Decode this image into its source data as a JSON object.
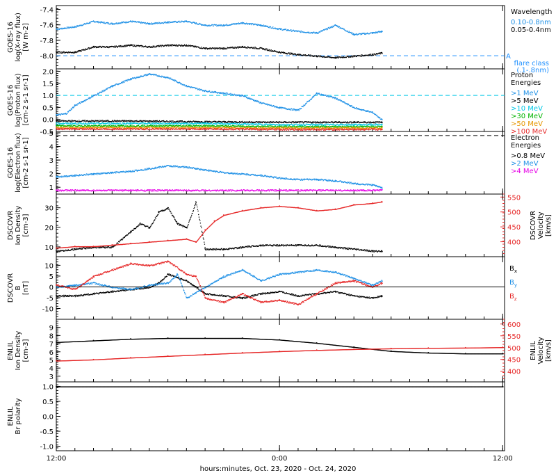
{
  "figure": {
    "xlabel": "hours:minutes, Oct. 23, 2020 - Oct. 24, 2020",
    "x_ticks": [
      "12:00",
      "0:00",
      "12:00"
    ],
    "x_tick_hours": [
      12,
      24,
      36
    ],
    "x_range_hours": [
      12,
      36.1
    ],
    "data_end_hours": [
      29.5
    ]
  },
  "colors": {
    "black": "#000000",
    "blue": "#1e90e6",
    "cyan": "#00c8e6",
    "lightblue": "#1e90ff",
    "green": "#00b400",
    "orange": "#e69600",
    "red": "#e62828",
    "magenta": "#e600e6"
  },
  "chart_data": [
    {
      "type": "scatter",
      "panel": "xray",
      "ylabel": [
        "GOES-16",
        "log(X-ray flux)",
        "[W m-2]"
      ],
      "ylim": [
        -8.17,
        -7.35
      ],
      "yticks": [
        "-7.4",
        "-7.6",
        "-7.8",
        "-8.0"
      ],
      "ytick_values": [
        -7.4,
        -7.6,
        -7.8,
        -8.0
      ],
      "legend_title": "Wavelength",
      "series": [
        {
          "name": "0.10-0.8nm",
          "color": "blue",
          "x": [
            12,
            13,
            14,
            15,
            16,
            17,
            18,
            19,
            20,
            21,
            22,
            23,
            24,
            25,
            26,
            27,
            28,
            29,
            29.5
          ],
          "y": [
            -7.65,
            -7.62,
            -7.55,
            -7.58,
            -7.55,
            -7.58,
            -7.56,
            -7.55,
            -7.6,
            -7.6,
            -7.57,
            -7.6,
            -7.65,
            -7.68,
            -7.7,
            -7.6,
            -7.72,
            -7.7,
            -7.68
          ]
        },
        {
          "name": "0.05-0.4nm",
          "color": "black",
          "x": [
            12,
            13,
            14,
            15,
            16,
            17,
            18,
            19,
            20,
            21,
            22,
            23,
            24,
            25,
            26,
            27,
            28,
            29,
            29.5
          ],
          "y": [
            -7.95,
            -7.95,
            -7.88,
            -7.88,
            -7.86,
            -7.88,
            -7.86,
            -7.86,
            -7.9,
            -7.9,
            -7.88,
            -7.9,
            -7.95,
            -7.98,
            -8.0,
            -8.02,
            -8.0,
            -7.98,
            -7.96
          ]
        }
      ],
      "reference_line": {
        "value": -8.0,
        "label": "A",
        "note": [
          "flare class",
          "(.1-.8nm)"
        ],
        "color": "lightblue"
      }
    },
    {
      "type": "scatter",
      "panel": "proton",
      "ylabel": [
        "GOES-16",
        "log(Proton flux)",
        "[cm-2 s-1 sr-1]"
      ],
      "ylim": [
        -0.5,
        2.1
      ],
      "yticks": [
        "2.0",
        "1.5",
        "1.0",
        "0.5",
        "0.0",
        "-0.5"
      ],
      "ytick_values": [
        2.0,
        1.5,
        1.0,
        0.5,
        0.0,
        -0.5
      ],
      "legend_title": [
        "Proton",
        "Energies"
      ],
      "series": [
        {
          "name": ">1 MeV",
          "color": "blue",
          "x": [
            12,
            12.5,
            13,
            14,
            15,
            16,
            17,
            18,
            19,
            20,
            21,
            22,
            23,
            24,
            25,
            26,
            27,
            28,
            29,
            29.5
          ],
          "y": [
            0.2,
            0.25,
            0.6,
            1.0,
            1.4,
            1.7,
            1.9,
            1.75,
            1.4,
            1.2,
            1.1,
            1.0,
            0.7,
            0.5,
            0.4,
            1.1,
            0.9,
            0.5,
            0.3,
            0.0
          ]
        },
        {
          "name": ">5 MeV",
          "color": "black",
          "x": [
            12,
            16,
            20,
            24,
            28,
            29.5
          ],
          "y": [
            -0.05,
            -0.05,
            -0.08,
            -0.1,
            -0.1,
            -0.1
          ]
        },
        {
          "name": ">10 MeV",
          "color": "cyan",
          "x": [
            12,
            16,
            20,
            24,
            28,
            29.5
          ],
          "y": [
            -0.15,
            -0.15,
            -0.15,
            -0.2,
            -0.2,
            -0.2
          ]
        },
        {
          "name": ">30 MeV",
          "color": "green",
          "x": [
            12,
            16,
            20,
            24,
            28,
            29.5
          ],
          "y": [
            -0.25,
            -0.25,
            -0.25,
            -0.28,
            -0.28,
            -0.28
          ]
        },
        {
          "name": ">50 MeV",
          "color": "orange",
          "x": [
            12,
            16,
            20,
            24,
            28,
            29.5
          ],
          "y": [
            -0.32,
            -0.32,
            -0.32,
            -0.34,
            -0.34,
            -0.34
          ]
        },
        {
          "name": ">100 MeV",
          "color": "red",
          "x": [
            12,
            16,
            20,
            24,
            28,
            29.5
          ],
          "y": [
            -0.38,
            -0.38,
            -0.38,
            -0.4,
            -0.4,
            -0.4
          ]
        }
      ],
      "reference_line": {
        "value": 1.0,
        "color": "cyan"
      }
    },
    {
      "type": "scatter",
      "panel": "electron",
      "ylabel": [
        "GOES-16",
        "log(Electron flux)",
        "[cm-2 s-1 sr-1]"
      ],
      "ylim": [
        0.5,
        5.1
      ],
      "yticks": [
        "5",
        "4",
        "3",
        "2",
        "1"
      ],
      "ytick_values": [
        5,
        4,
        3,
        2,
        1
      ],
      "legend_title": [
        "Electron",
        "Energies"
      ],
      "series": [
        {
          "name": ">0.8 MeV",
          "color": "black",
          "x": [],
          "y": []
        },
        {
          "name": ">2 MeV",
          "color": "blue",
          "x": [
            12,
            13,
            14,
            15,
            16,
            17,
            18,
            19,
            20,
            21,
            22,
            23,
            24,
            25,
            26,
            27,
            28,
            29,
            29.5
          ],
          "y": [
            1.8,
            1.9,
            2.0,
            2.1,
            2.2,
            2.4,
            2.6,
            2.5,
            2.3,
            2.1,
            2.0,
            1.9,
            1.7,
            1.6,
            1.6,
            1.5,
            1.3,
            1.2,
            1.0
          ]
        },
        {
          "name": ">4 MeV",
          "color": "magenta",
          "x": [
            12,
            16,
            20,
            24,
            28,
            29.5
          ],
          "y": [
            0.8,
            0.8,
            0.8,
            0.8,
            0.8,
            0.8
          ]
        }
      ],
      "reference_line": {
        "value": 4.8,
        "color": "black"
      }
    },
    {
      "type": "scatter",
      "panel": "dscovr_density",
      "ylabel": [
        "DSCOVR",
        "Ion Density",
        "[cm-3]"
      ],
      "ylim": [
        5,
        37
      ],
      "yticks": [
        "30",
        "20",
        "10"
      ],
      "ytick_values": [
        30,
        20,
        10
      ],
      "ylabel_right": [
        "DSCOVR",
        "Velocity",
        "[km/s]"
      ],
      "ylim_right": [
        350,
        560
      ],
      "yticks_right": [
        "550",
        "500",
        "450",
        "400"
      ],
      "ytick_values_right": [
        550,
        500,
        450,
        400
      ],
      "series": [
        {
          "name": "Ion Density",
          "color": "black",
          "x": [
            12,
            13,
            14,
            15,
            16,
            16.5,
            17,
            17.5,
            18,
            18.5,
            19,
            19.5,
            20,
            21,
            22,
            23,
            24,
            25,
            26,
            27,
            28,
            29,
            29.5
          ],
          "y": [
            8,
            9,
            10,
            10,
            18,
            22,
            20,
            28,
            30,
            22,
            20,
            33,
            9,
            9,
            10,
            11,
            11,
            11,
            11,
            10,
            9,
            8,
            8
          ]
        },
        {
          "name": "Velocity",
          "color": "red",
          "axis": "right",
          "x": [
            12,
            13,
            14,
            15,
            16,
            17,
            18,
            19,
            19.5,
            20,
            20.5,
            21,
            22,
            23,
            24,
            25,
            26,
            27,
            28,
            29,
            29.5
          ],
          "y": [
            380,
            385,
            385,
            390,
            395,
            400,
            405,
            410,
            400,
            440,
            470,
            490,
            505,
            515,
            520,
            515,
            505,
            510,
            525,
            530,
            535
          ]
        }
      ]
    },
    {
      "type": "scatter",
      "panel": "dscovr_b",
      "ylabel": [
        "DSCOVR",
        "B",
        "[nT]"
      ],
      "ylim": [
        -15,
        14
      ],
      "yticks": [
        "10",
        "5",
        "0",
        "-5",
        "-10"
      ],
      "ytick_values": [
        10,
        5,
        0,
        -5,
        -10
      ],
      "legend_labels": [
        {
          "label": "B",
          "sub": "x",
          "color": "black"
        },
        {
          "label": "B",
          "sub": "y",
          "color": "blue"
        },
        {
          "label": "B",
          "sub": "z",
          "color": "red"
        }
      ],
      "series": [
        {
          "name": "Bx",
          "color": "black",
          "x": [
            12,
            13,
            14,
            15,
            16,
            17,
            17.5,
            18,
            19,
            20,
            21,
            22,
            23,
            24,
            25,
            26,
            27,
            28,
            29,
            29.5
          ],
          "y": [
            -4,
            -4,
            -3,
            -2,
            -1,
            0,
            2,
            6,
            3,
            -3,
            -4,
            -5,
            -3,
            -2,
            -4,
            -3,
            -2,
            -4,
            -5,
            -4
          ]
        },
        {
          "name": "By",
          "color": "blue",
          "x": [
            12,
            13,
            14,
            15,
            16,
            17,
            18,
            18.5,
            19,
            20,
            21,
            22,
            23,
            24,
            25,
            26,
            27,
            28,
            29,
            29.5
          ],
          "y": [
            0,
            1,
            2,
            0,
            -1,
            1,
            2,
            6,
            -5,
            0,
            5,
            8,
            3,
            6,
            7,
            8,
            7,
            4,
            1,
            3
          ]
        },
        {
          "name": "Bz",
          "color": "red",
          "x": [
            12,
            13,
            14,
            15,
            16,
            17,
            18,
            19,
            19.5,
            20,
            21,
            22,
            23,
            24,
            25,
            26,
            27,
            28,
            29,
            29.5
          ],
          "y": [
            1,
            -1,
            5,
            8,
            11,
            10,
            12,
            6,
            5,
            -5,
            -7,
            -3,
            -7,
            -6,
            -8,
            -3,
            2,
            3,
            0,
            2
          ]
        }
      ]
    },
    {
      "type": "scatter",
      "panel": "enlil_density",
      "ylabel": [
        "ENLIL",
        "Ion Density",
        "[cm-3]"
      ],
      "ylim": [
        2.3,
        10
      ],
      "yticks": [
        "9",
        "8",
        "7",
        "6",
        "5",
        "4",
        "3"
      ],
      "ytick_values": [
        9,
        8,
        7,
        6,
        5,
        4,
        3
      ],
      "ylabel_right": [
        "ENLIL",
        "Velocity",
        "[km/s]"
      ],
      "ylim_right": [
        355,
        620
      ],
      "yticks_right": [
        "600",
        "550",
        "500",
        "450",
        "400"
      ],
      "ytick_values_right": [
        600,
        550,
        500,
        450,
        400
      ],
      "series": [
        {
          "name": "Ion Density",
          "color": "black",
          "x": [
            12,
            14,
            16,
            18,
            20,
            22,
            24,
            26,
            28,
            30,
            32,
            34,
            36
          ],
          "y": [
            7.2,
            7.4,
            7.6,
            7.7,
            7.7,
            7.7,
            7.5,
            7.1,
            6.6,
            6.1,
            5.9,
            5.8,
            5.8
          ]
        },
        {
          "name": "Velocity",
          "color": "red",
          "axis": "right",
          "x": [
            12,
            14,
            16,
            18,
            20,
            22,
            24,
            26,
            28,
            30,
            32,
            34,
            36
          ],
          "y": [
            445,
            450,
            458,
            465,
            472,
            479,
            485,
            490,
            494,
            497,
            499,
            500,
            502
          ]
        }
      ]
    },
    {
      "type": "scatter",
      "panel": "enlil_polarity",
      "ylabel": [
        "ENLIL",
        "Br polarity"
      ],
      "ylim": [
        -1.15,
        1.15
      ],
      "yticks": [
        "1.0",
        "0.5",
        "0.0",
        "-0.5",
        "-1.0"
      ],
      "ytick_values": [
        1.0,
        0.5,
        0.0,
        -0.5,
        -1.0
      ],
      "series": [
        {
          "name": "Br polarity",
          "color": "black",
          "x": [
            12,
            36
          ],
          "y": [
            1.0,
            1.0
          ]
        }
      ]
    }
  ]
}
